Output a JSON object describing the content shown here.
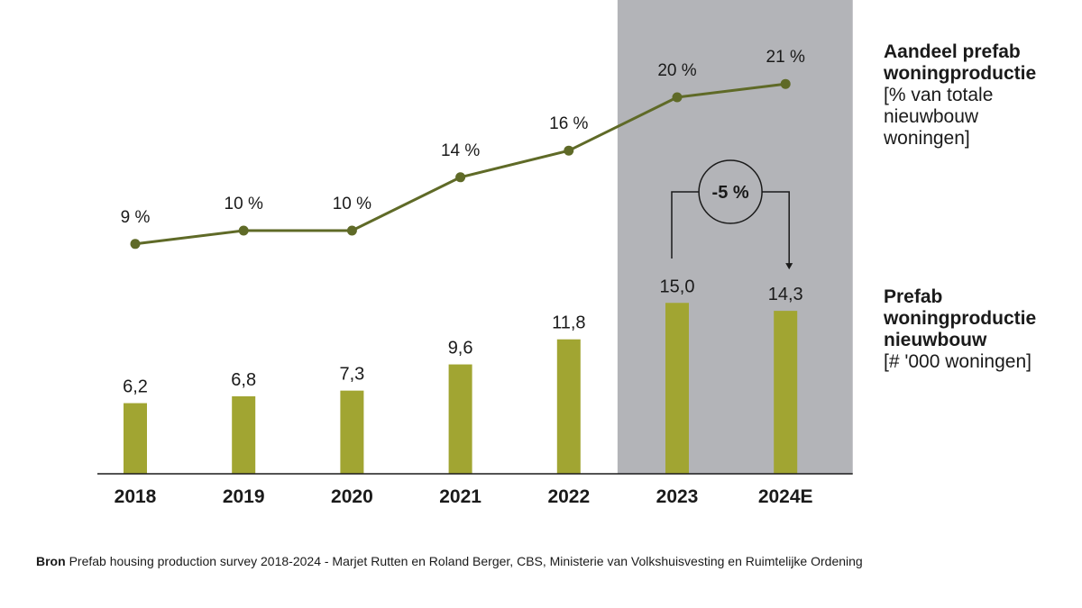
{
  "chart_data": {
    "type": "bar",
    "categories": [
      "2018",
      "2019",
      "2020",
      "2021",
      "2022",
      "2023",
      "2024E"
    ],
    "series": [
      {
        "name": "Prefab woningproductie nieuwbouw",
        "unit": "# '000 woningen",
        "type": "bar",
        "values": [
          6.2,
          6.8,
          7.3,
          9.6,
          11.8,
          15.0,
          14.3
        ],
        "labels": [
          "6,2",
          "6,8",
          "7,3",
          "9,6",
          "11,8",
          "15,0",
          "14,3"
        ],
        "color": "#a1a532"
      },
      {
        "name": "Aandeel prefab woningproductie",
        "unit": "% van totale nieuwbouw woningen",
        "type": "line",
        "values": [
          9,
          10,
          10,
          14,
          16,
          20,
          21
        ],
        "labels": [
          "9 %",
          "10 %",
          "10 %",
          "14 %",
          "16 %",
          "20 %",
          "21 %"
        ],
        "color": "#5f6a27"
      }
    ],
    "highlight": {
      "from": "2023",
      "to": "2024E",
      "color": "#b3b4b8"
    },
    "change_annotation": {
      "from": "2023",
      "to": "2024E",
      "label": "-5 %"
    }
  },
  "legend": {
    "line_title_1": "Aandeel prefab",
    "line_title_2": "woningproductie",
    "line_unit_1": "[% van totale",
    "line_unit_2": "nieuwbouw",
    "line_unit_3": "woningen]",
    "bar_title_1": "Prefab",
    "bar_title_2": "woningproductie",
    "bar_title_3": "nieuwbouw",
    "bar_unit": "[# '000 woningen]"
  },
  "source": {
    "label": "Bron",
    "text": "Prefab housing production survey 2018-2024 - Marjet Rutten en Roland Berger, CBS, Ministerie van Volkshuisvesting en Ruimtelijke Ordening"
  }
}
